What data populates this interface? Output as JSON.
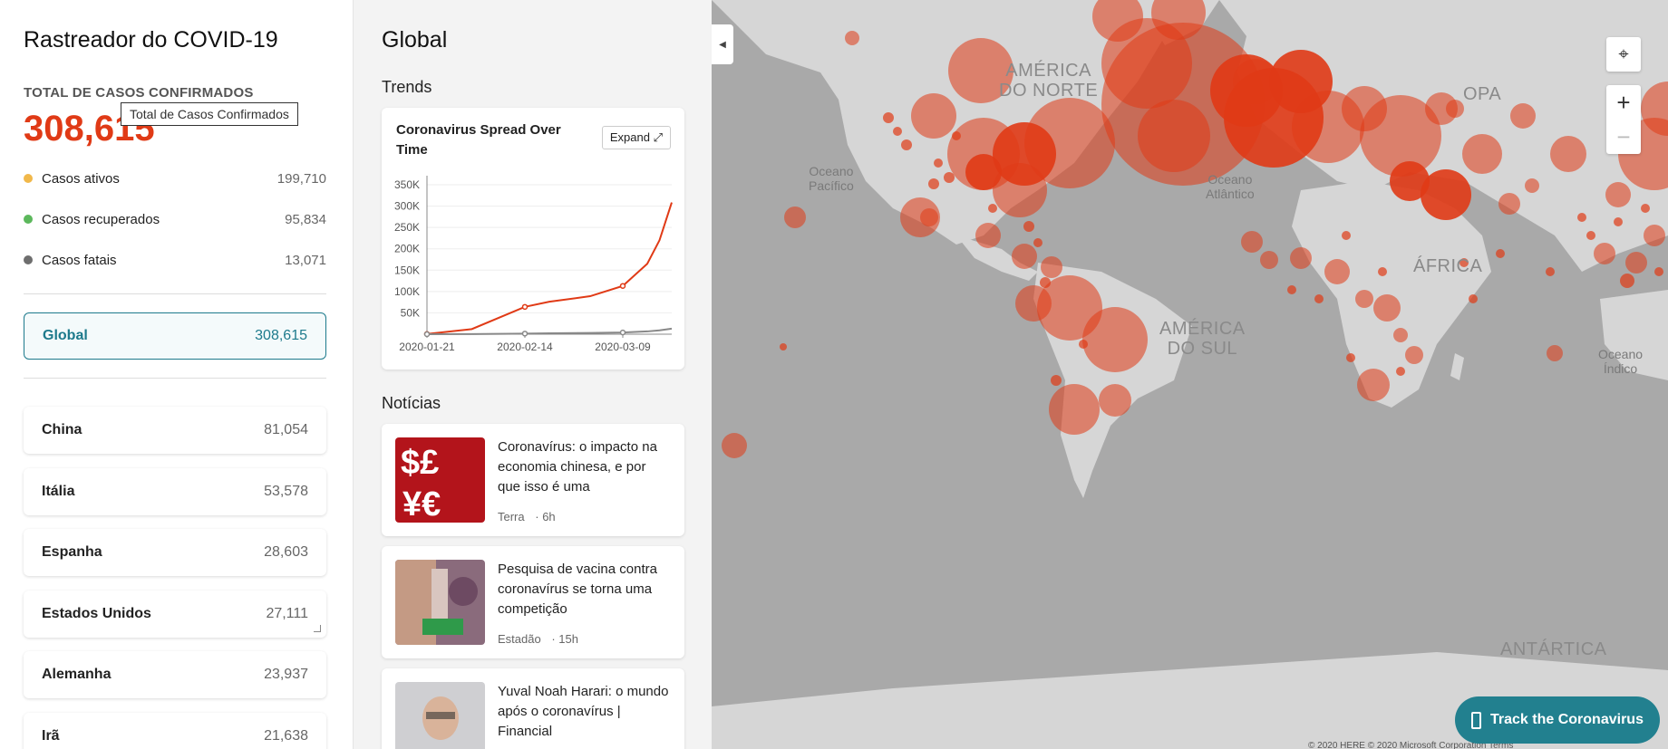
{
  "left": {
    "app_title": "Rastreador do COVID-19",
    "total_label": "TOTAL DE CASOS CONFIRMADOS",
    "total_value": "308,615",
    "tooltip": "Total de Casos Confirmados",
    "stats": [
      {
        "label": "Casos ativos",
        "value": "199,710",
        "color": "#f1b84a"
      },
      {
        "label": "Casos recuperados",
        "value": "95,834",
        "color": "#5cb85c"
      },
      {
        "label": "Casos fatais",
        "value": "13,071",
        "color": "#6e6e6e"
      }
    ],
    "global": {
      "label": "Global",
      "value": "308,615"
    },
    "countries": [
      {
        "label": "China",
        "value": "81,054"
      },
      {
        "label": "Itália",
        "value": "53,578"
      },
      {
        "label": "Espanha",
        "value": "28,603"
      },
      {
        "label": "Estados Unidos",
        "value": "27,111"
      },
      {
        "label": "Alemanha",
        "value": "23,937"
      },
      {
        "label": "Irã",
        "value": "21,638"
      }
    ]
  },
  "middle": {
    "title": "Global",
    "trends_heading": "Trends",
    "chart_card_title": "Coronavirus Spread Over Time",
    "expand_label": "Expand",
    "news_heading": "Notícias",
    "news": [
      {
        "title": "Coronavírus: o impacto na economia chinesa, e por que isso é uma",
        "source": "Terra",
        "age": "· 6h"
      },
      {
        "title": "Pesquisa de vacina contra coronavírus se torna uma competição",
        "source": "Estadão",
        "age": "· 15h"
      },
      {
        "title": "Yuval Noah Harari: o mundo após o coronavírus | Financial",
        "source": "",
        "age": ""
      }
    ]
  },
  "chart_data": {
    "type": "line",
    "x": [
      "2020-01-21",
      "2020-02-01",
      "2020-02-14",
      "2020-02-20",
      "2020-03-01",
      "2020-03-09",
      "2020-03-15",
      "2020-03-18",
      "2020-03-21"
    ],
    "x_tick_labels": [
      "2020-01-21",
      "2020-02-14",
      "2020-03-09"
    ],
    "y_tick_labels": [
      "50K",
      "100K",
      "150K",
      "200K",
      "250K",
      "300K",
      "350K"
    ],
    "ylim": [
      0,
      350000
    ],
    "series": [
      {
        "values": [
          500,
          12000,
          64000,
          76000,
          89000,
          113000,
          165000,
          220000,
          308615
        ],
        "color": "#e03a16"
      },
      {
        "values": [
          0,
          300,
          1400,
          2200,
          3000,
          4000,
          6500,
          9000,
          13071
        ],
        "color": "#888888"
      }
    ]
  },
  "map": {
    "labels": {
      "pacific": "Oceano\nPacífico",
      "atlantic": "Oceano\nAtlântico",
      "indian": "Oceano\nÍndico",
      "north_america": "AMÉRICA\nDO NORTE",
      "south_america": "AMÉRICA\nDO SUL",
      "africa": "ÁFRICA",
      "europe": "OPA",
      "antarctica": "ANTÁRTICA"
    },
    "copyright": "© 2020 HERE © 2020 Microsoft Corporation Terms",
    "track_button": "Track the Coronavirus",
    "bubble_color": "#e03a16",
    "land_color": "#d6d6d6",
    "water_color": "#a9a9a9"
  }
}
